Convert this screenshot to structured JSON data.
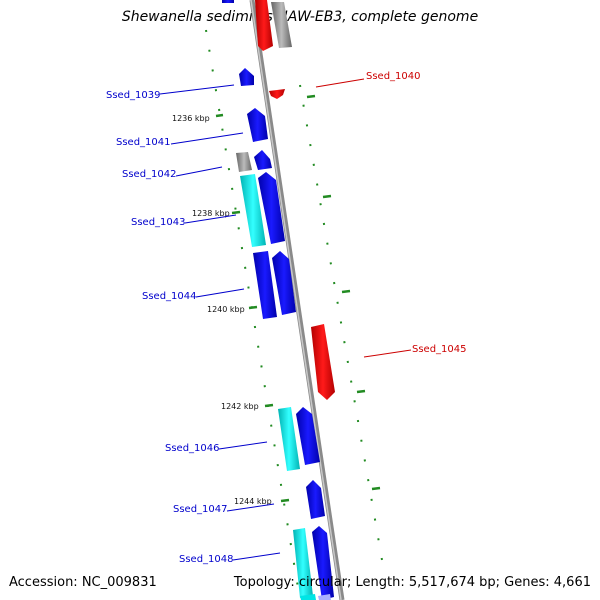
{
  "title": "Shewanella sediminis HAW-EB3, complete genome",
  "accession": "Accession: NC_009831",
  "topology": "Topology: circular; Length: 5,517,674 bp; Genes: 4,661",
  "colors": {
    "forward_cds": "#0000ee",
    "reverse_cds": "#ee0000",
    "cyan_track": "#00e5e5",
    "gray_track": "#888888",
    "backbone": "#999999",
    "tick": "#228b22",
    "label_forward": "#0000cc",
    "label_reverse": "#cc0000"
  },
  "scale_labels": [
    "1236 kbp",
    "1238 kbp",
    "1240 kbp",
    "1242 kbp",
    "1244 kbp"
  ],
  "gene_labels": {
    "Ssed_1039": "Ssed_1039",
    "Ssed_1040": "Ssed_1040",
    "Ssed_1041": "Ssed_1041",
    "Ssed_1042": "Ssed_1042",
    "Ssed_1043": "Ssed_1043",
    "Ssed_1044": "Ssed_1044",
    "Ssed_1045": "Ssed_1045",
    "Ssed_1046": "Ssed_1046",
    "Ssed_1047": "Ssed_1047",
    "Ssed_1048": "Ssed_1048"
  }
}
